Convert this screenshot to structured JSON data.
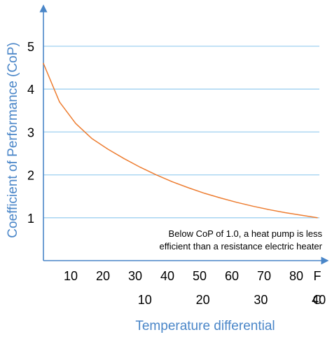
{
  "chart_data": {
    "type": "line",
    "ylabel": "Coefficient of Performance (CoP)",
    "xlabel": "Temperature differential",
    "ylim": [
      0,
      5.9
    ],
    "xlim_f": [
      5,
      90
    ],
    "y_ticks": [
      "1",
      "2",
      "3",
      "4",
      "5"
    ],
    "y_tick_values": [
      1,
      2,
      3,
      4,
      5
    ],
    "x_ticks_f": [
      "10",
      "20",
      "30",
      "40",
      "50",
      "60",
      "70",
      "80"
    ],
    "x_ticks_f_values": [
      10,
      20,
      30,
      40,
      50,
      60,
      70,
      80
    ],
    "x_unit_f": "F",
    "x_ticks_c": [
      "10",
      "20",
      "30",
      "40"
    ],
    "x_ticks_c_values": [
      10,
      20,
      30,
      40
    ],
    "x_unit_c": "C",
    "grid": true,
    "series": [
      {
        "color": "#ed7d31",
        "x_f": [
          5,
          10,
          15,
          20,
          25,
          30,
          35,
          40,
          45,
          50,
          55,
          60,
          65,
          70,
          75,
          80,
          85,
          90
        ],
        "values": [
          4.6,
          3.7,
          3.2,
          2.85,
          2.6,
          2.38,
          2.18,
          2.0,
          1.84,
          1.7,
          1.57,
          1.46,
          1.36,
          1.27,
          1.19,
          1.12,
          1.06,
          1.0
        ]
      }
    ],
    "annotation": [
      "Below CoP of 1.0, a heat pump is less",
      "efficient than a resistance electric heater"
    ],
    "colors": {
      "axis": "#4a86c8",
      "grid": "#9fd0f0",
      "curve": "#ed7d31"
    }
  }
}
